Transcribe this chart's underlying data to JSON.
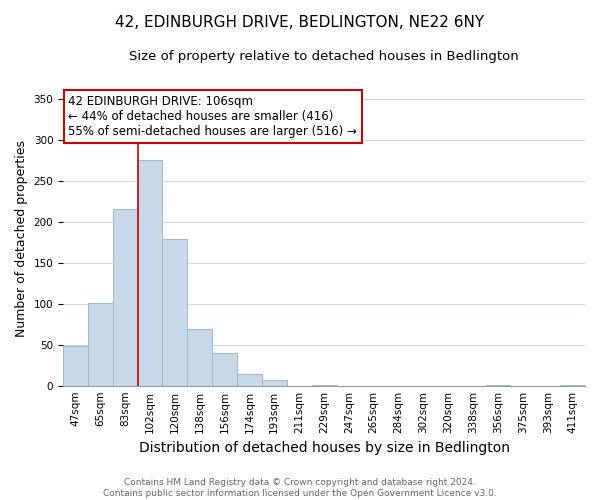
{
  "title": "42, EDINBURGH DRIVE, BEDLINGTON, NE22 6NY",
  "subtitle": "Size of property relative to detached houses in Bedlington",
  "xlabel": "Distribution of detached houses by size in Bedlington",
  "ylabel": "Number of detached properties",
  "bar_labels": [
    "47sqm",
    "65sqm",
    "83sqm",
    "102sqm",
    "120sqm",
    "138sqm",
    "156sqm",
    "174sqm",
    "193sqm",
    "211sqm",
    "229sqm",
    "247sqm",
    "265sqm",
    "284sqm",
    "302sqm",
    "320sqm",
    "338sqm",
    "356sqm",
    "375sqm",
    "393sqm",
    "411sqm"
  ],
  "bar_heights": [
    49,
    101,
    215,
    275,
    179,
    69,
    40,
    14,
    7,
    0,
    1,
    0,
    0,
    0,
    0,
    0,
    0,
    1,
    0,
    0,
    1
  ],
  "bar_color": "#c8d8e8",
  "bar_edge_color": "#a0b8cc",
  "vline_x_index": 3,
  "vline_color": "#cc0000",
  "ylim": [
    0,
    360
  ],
  "yticks": [
    0,
    50,
    100,
    150,
    200,
    250,
    300,
    350
  ],
  "annotation_title": "42 EDINBURGH DRIVE: 106sqm",
  "annotation_line1": "← 44% of detached houses are smaller (416)",
  "annotation_line2": "55% of semi-detached houses are larger (516) →",
  "annotation_box_color": "#ffffff",
  "annotation_box_edge": "#cc0000",
  "footnote1": "Contains HM Land Registry data © Crown copyright and database right 2024.",
  "footnote2": "Contains public sector information licensed under the Open Government Licence v3.0.",
  "title_fontsize": 11,
  "subtitle_fontsize": 9.5,
  "xlabel_fontsize": 10,
  "ylabel_fontsize": 9,
  "tick_fontsize": 7.5,
  "annotation_fontsize": 8.5,
  "footnote_fontsize": 6.5
}
